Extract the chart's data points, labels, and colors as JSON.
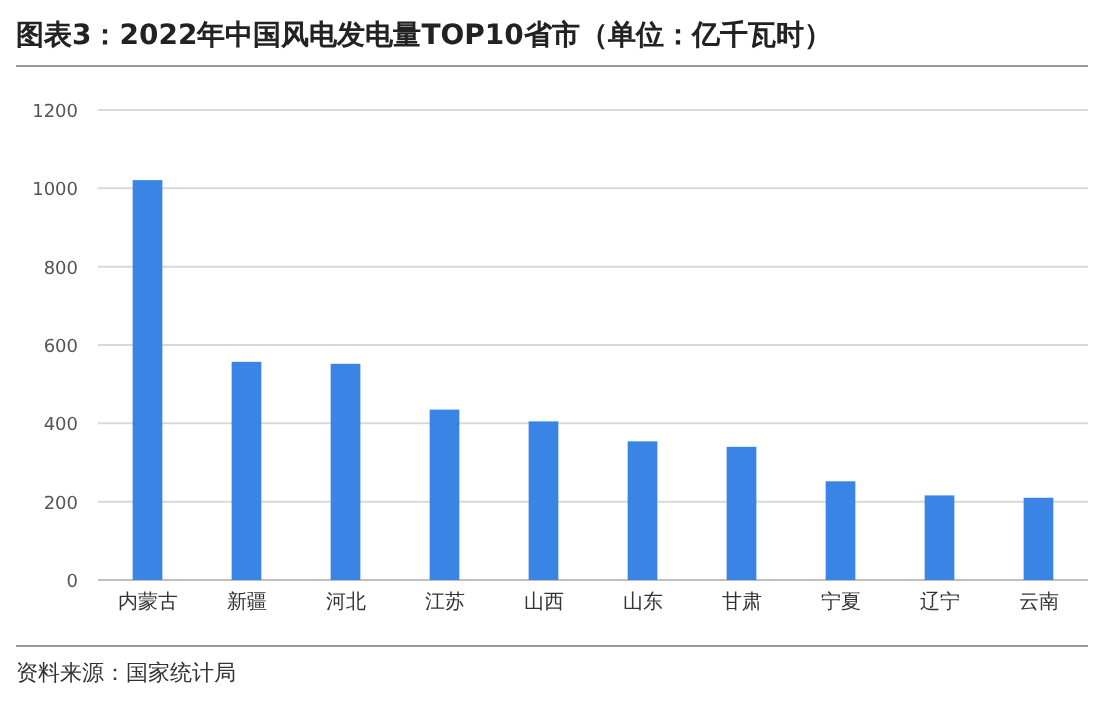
{
  "chart_data": {
    "type": "bar",
    "title": "图表3：2022年中国风电发电量TOP10省市（单位：亿千瓦时）",
    "categories": [
      "内蒙古",
      "新疆",
      "河北",
      "江苏",
      "山西",
      "山东",
      "甘肃",
      "宁夏",
      "辽宁",
      "云南"
    ],
    "values": [
      1021,
      557,
      552,
      435,
      405,
      354,
      340,
      252,
      216,
      210
    ],
    "color": "#3a84e6",
    "ylim": [
      0,
      1200
    ],
    "yticks": [
      0,
      200,
      400,
      600,
      800,
      1000,
      1200
    ],
    "grid": "y",
    "annotations": [
      "资料来源：国家统计局"
    ]
  }
}
